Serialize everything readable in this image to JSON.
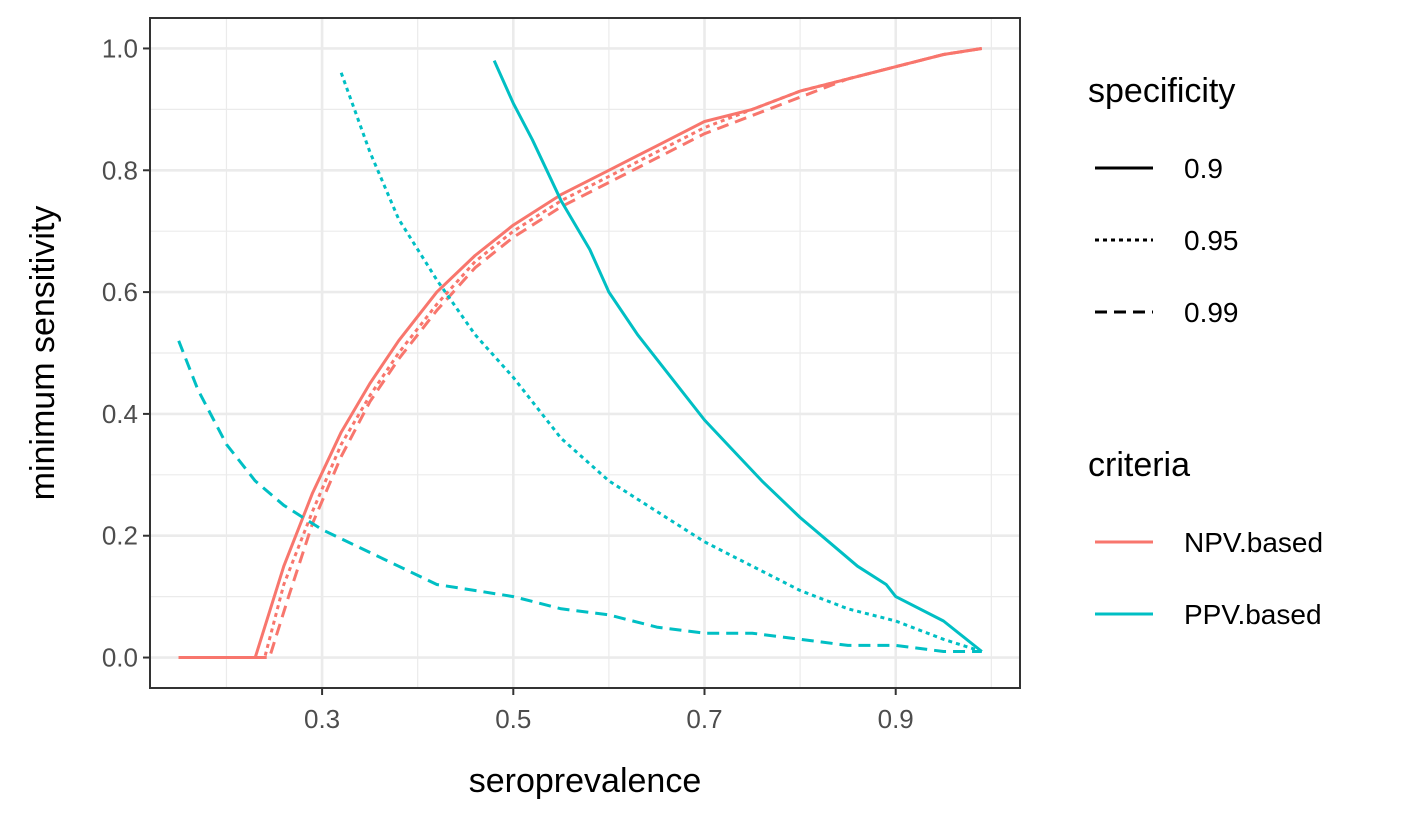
{
  "chart_data": {
    "type": "line",
    "xlabel": "seroprevalence",
    "ylabel": "minimum sensitivity",
    "xlim": [
      0.12,
      1.03
    ],
    "ylim": [
      -0.05,
      1.05
    ],
    "x_ticks": [
      0.3,
      0.5,
      0.7,
      0.9
    ],
    "x_tick_labels": [
      "0.3",
      "0.5",
      "0.7",
      "0.9"
    ],
    "y_ticks": [
      0.0,
      0.2,
      0.4,
      0.6,
      0.8,
      1.0
    ],
    "y_tick_labels": [
      "0.0",
      "0.2",
      "0.4",
      "0.6",
      "0.8",
      "1.0"
    ],
    "grid": true,
    "legend_position": "right",
    "legend": {
      "specificity": {
        "title": "specificity",
        "entries": [
          {
            "label": "0.9",
            "dash": "solid"
          },
          {
            "label": "0.95",
            "dash": "dotted"
          },
          {
            "label": "0.99",
            "dash": "dashed"
          }
        ]
      },
      "criteria": {
        "title": "criteria",
        "entries": [
          {
            "label": "NPV.based",
            "color": "#F8766D"
          },
          {
            "label": "PPV.based",
            "color": "#00BFC4"
          }
        ]
      }
    },
    "series": [
      {
        "criteria": "NPV.based",
        "specificity": "0.9",
        "color": "#F8766D",
        "dash": "solid",
        "x": [
          0.15,
          0.2,
          0.23,
          0.26,
          0.29,
          0.32,
          0.35,
          0.38,
          0.42,
          0.46,
          0.5,
          0.55,
          0.6,
          0.65,
          0.7,
          0.75,
          0.8,
          0.85,
          0.9,
          0.95,
          0.99
        ],
        "y": [
          0.0,
          0.0,
          0.0,
          0.15,
          0.27,
          0.37,
          0.45,
          0.52,
          0.6,
          0.66,
          0.71,
          0.76,
          0.8,
          0.84,
          0.88,
          0.9,
          0.93,
          0.95,
          0.97,
          0.99,
          1.0
        ]
      },
      {
        "criteria": "NPV.based",
        "specificity": "0.95",
        "color": "#F8766D",
        "dash": "dotted",
        "x": [
          0.15,
          0.2,
          0.24,
          0.26,
          0.29,
          0.32,
          0.35,
          0.38,
          0.42,
          0.46,
          0.5,
          0.55,
          0.6,
          0.65,
          0.7,
          0.75,
          0.8,
          0.85,
          0.9,
          0.95,
          0.99
        ],
        "y": [
          0.0,
          0.0,
          0.0,
          0.12,
          0.24,
          0.35,
          0.43,
          0.5,
          0.58,
          0.65,
          0.7,
          0.75,
          0.79,
          0.83,
          0.87,
          0.9,
          0.93,
          0.95,
          0.97,
          0.99,
          1.0
        ]
      },
      {
        "criteria": "NPV.based",
        "specificity": "0.99",
        "color": "#F8766D",
        "dash": "dashed",
        "x": [
          0.15,
          0.2,
          0.245,
          0.265,
          0.29,
          0.32,
          0.35,
          0.38,
          0.42,
          0.46,
          0.5,
          0.55,
          0.6,
          0.65,
          0.7,
          0.75,
          0.8,
          0.85,
          0.9,
          0.95,
          0.99
        ],
        "y": [
          0.0,
          0.0,
          0.0,
          0.1,
          0.22,
          0.33,
          0.42,
          0.49,
          0.57,
          0.64,
          0.69,
          0.74,
          0.78,
          0.82,
          0.86,
          0.89,
          0.92,
          0.95,
          0.97,
          0.99,
          1.0
        ]
      },
      {
        "criteria": "PPV.based",
        "specificity": "0.9",
        "color": "#00BFC4",
        "dash": "solid",
        "x": [
          0.48,
          0.5,
          0.52,
          0.55,
          0.58,
          0.6,
          0.63,
          0.66,
          0.7,
          0.73,
          0.76,
          0.8,
          0.83,
          0.86,
          0.89,
          0.9,
          0.95,
          0.99
        ],
        "y": [
          0.98,
          0.91,
          0.85,
          0.75,
          0.67,
          0.6,
          0.53,
          0.47,
          0.39,
          0.34,
          0.29,
          0.23,
          0.19,
          0.15,
          0.12,
          0.1,
          0.06,
          0.01
        ]
      },
      {
        "criteria": "PPV.based",
        "specificity": "0.95",
        "color": "#00BFC4",
        "dash": "dotted",
        "x": [
          0.32,
          0.35,
          0.38,
          0.42,
          0.46,
          0.5,
          0.55,
          0.6,
          0.65,
          0.7,
          0.75,
          0.8,
          0.85,
          0.9,
          0.95,
          0.99
        ],
        "y": [
          0.96,
          0.83,
          0.72,
          0.62,
          0.53,
          0.46,
          0.36,
          0.29,
          0.24,
          0.19,
          0.15,
          0.11,
          0.08,
          0.06,
          0.03,
          0.01
        ]
      },
      {
        "criteria": "PPV.based",
        "specificity": "0.99",
        "color": "#00BFC4",
        "dash": "dashed",
        "x": [
          0.15,
          0.17,
          0.2,
          0.23,
          0.26,
          0.3,
          0.34,
          0.38,
          0.42,
          0.46,
          0.5,
          0.55,
          0.6,
          0.65,
          0.7,
          0.75,
          0.8,
          0.85,
          0.9,
          0.95,
          0.99
        ],
        "y": [
          0.52,
          0.44,
          0.35,
          0.29,
          0.25,
          0.21,
          0.18,
          0.15,
          0.12,
          0.11,
          0.1,
          0.08,
          0.07,
          0.05,
          0.04,
          0.04,
          0.03,
          0.02,
          0.02,
          0.01,
          0.01
        ]
      }
    ]
  }
}
